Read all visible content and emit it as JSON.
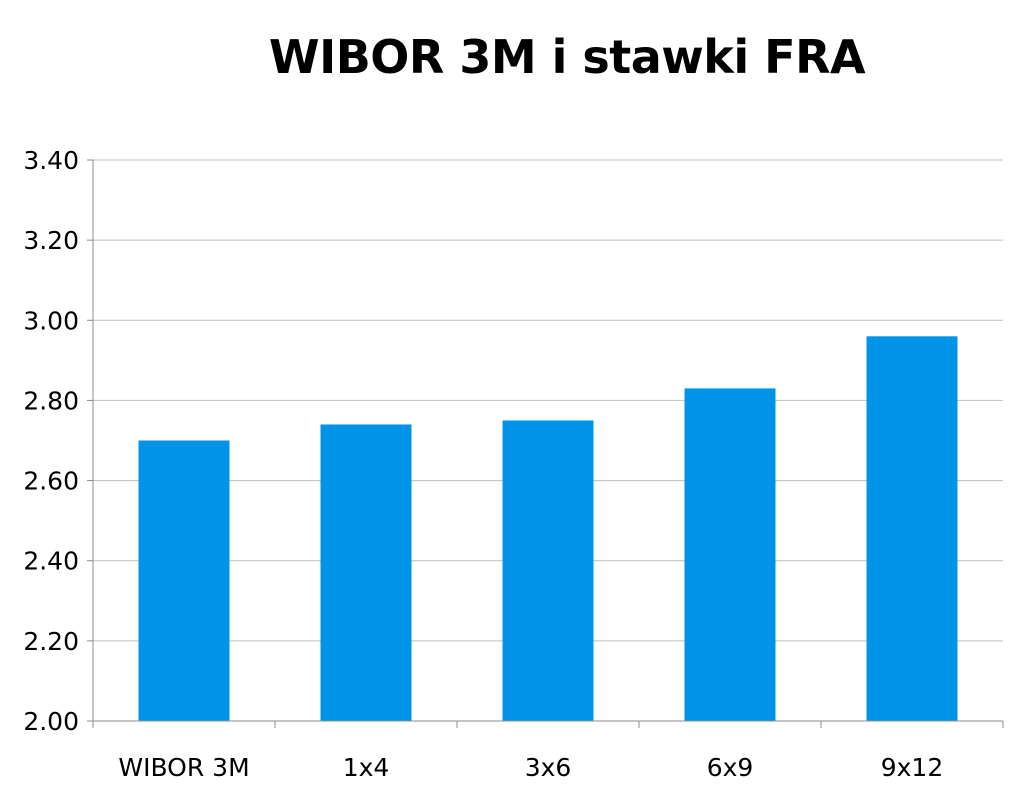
{
  "chart_data": {
    "type": "bar",
    "title": "WIBOR 3M i stawki FRA",
    "xlabel": "",
    "ylabel": "",
    "categories": [
      "WIBOR 3M",
      "1x4",
      "3x6",
      "6x9",
      "9x12"
    ],
    "values": [
      2.7,
      2.74,
      2.75,
      2.83,
      2.96
    ],
    "ylim": [
      2.0,
      3.4
    ],
    "yticks": [
      "2.00",
      "2.20",
      "2.40",
      "2.60",
      "2.80",
      "3.00",
      "3.20",
      "3.40"
    ],
    "grid": true,
    "legend": "none"
  },
  "colors": {
    "bar": "#0094E8",
    "grid": "#BFBFBF",
    "axis": "#8C8C8C"
  }
}
